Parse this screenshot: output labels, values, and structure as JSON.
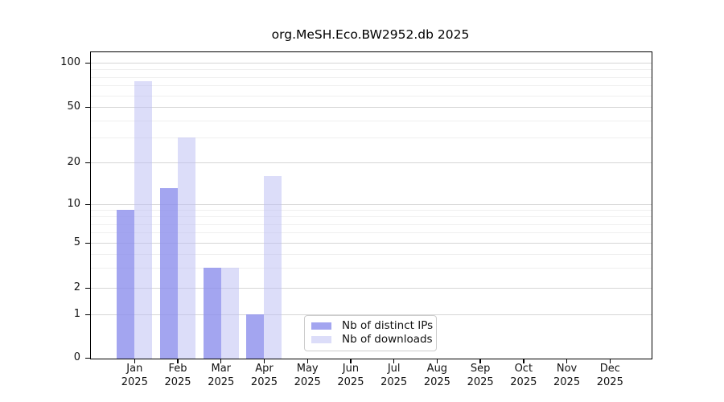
{
  "title": "org.MeSH.Eco.BW2952.db 2025",
  "chart_data": {
    "type": "bar",
    "title": "org.MeSH.Eco.BW2952.db 2025",
    "categories": [
      "Jan",
      "Feb",
      "Mar",
      "Apr",
      "May",
      "Jun",
      "Jul",
      "Aug",
      "Sep",
      "Oct",
      "Nov",
      "Dec"
    ],
    "year": "2025",
    "series": [
      {
        "name": "Nb of distinct IPs",
        "color": "#8c8eec",
        "values": [
          9,
          13,
          3,
          1,
          0,
          0,
          0,
          0,
          0,
          0,
          0,
          0
        ]
      },
      {
        "name": "Nb of downloads",
        "color": "#b9bbf3",
        "values": [
          75,
          30,
          3,
          16,
          0,
          0,
          0,
          0,
          0,
          0,
          0,
          0
        ]
      }
    ],
    "yticks": [
      0,
      1,
      2,
      5,
      10,
      20,
      50,
      100
    ],
    "minor_gridlines": [
      3,
      4,
      6,
      7,
      8,
      9,
      30,
      40,
      60,
      70,
      80,
      90
    ],
    "yscale": "log-like (0 baseline with compressed lower decade)",
    "ylim": [
      0,
      110
    ],
    "grid": "horizontal",
    "legend_position": "bottom-center-inside",
    "colors": {
      "background": "#ffffff",
      "spine": "#000000",
      "major_grid": "#d6d6d6",
      "minor_grid": "#efefef",
      "text": "#111111",
      "legend_border": "#cccccc"
    }
  }
}
